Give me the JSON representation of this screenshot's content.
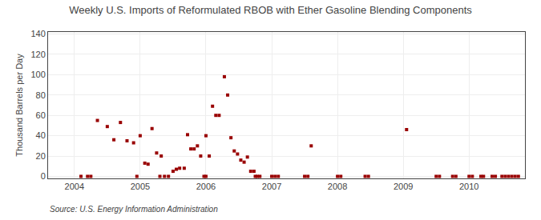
{
  "chart_data": {
    "type": "scatter",
    "title": "Weekly U.S. Imports of Reformulated RBOB with Ether Gasoline Blending Components",
    "y_label": "Thousand Barrels per Day",
    "annotations": [
      "Source: U.S. Energy Information Administration"
    ],
    "x": [
      2004.35,
      2004.5,
      2004.6,
      2004.7,
      2004.8,
      2004.9,
      2005.0,
      2005.07,
      2005.12,
      2005.18,
      2005.25,
      2005.32,
      2005.5,
      2005.55,
      2005.6,
      2005.67,
      2005.72,
      2005.77,
      2005.82,
      2005.87,
      2005.92,
      2006.0,
      2006.05,
      2006.1,
      2006.15,
      2006.2,
      2006.28,
      2006.33,
      2006.38,
      2006.43,
      2006.48,
      2006.53,
      2006.58,
      2006.63,
      2006.68,
      2006.73,
      2007.6,
      2009.05,
      2004.1,
      2004.2,
      2004.25,
      2004.95,
      2005.3,
      2005.37,
      2005.43,
      2005.97,
      2006.0,
      2006.75,
      2006.78,
      2006.82,
      2007.0,
      2007.05,
      2007.1,
      2007.5,
      2007.55,
      2008.0,
      2008.05,
      2008.42,
      2008.47,
      2009.5,
      2009.55,
      2009.75,
      2009.8,
      2010.0,
      2010.05,
      2010.18,
      2010.22,
      2010.35,
      2010.4,
      2010.5,
      2010.55,
      2010.6,
      2010.65,
      2010.7,
      2010.75
    ],
    "values": [
      55,
      49,
      36,
      53,
      35,
      33,
      40,
      13,
      12,
      47,
      23,
      20,
      5,
      7,
      8,
      8,
      41,
      27,
      27,
      30,
      20,
      40,
      20,
      69,
      60,
      60,
      98,
      80,
      38,
      25,
      22,
      16,
      14,
      19,
      5,
      5,
      30,
      46,
      0,
      0,
      0,
      0,
      0,
      0,
      0,
      0,
      0,
      0,
      0,
      0,
      0,
      0,
      0,
      0,
      0,
      0,
      0,
      0,
      0,
      0,
      0,
      0,
      0,
      0,
      0,
      0,
      0,
      0,
      0,
      0,
      0,
      0,
      0,
      0,
      0
    ],
    "color": "#990000",
    "marker": "square",
    "xlim": [
      2003.6,
      2010.85
    ],
    "ylim": [
      -2,
      142
    ],
    "xticks": [
      2004,
      2005,
      2006,
      2007,
      2008,
      2009,
      2010
    ],
    "yticks": [
      0,
      20,
      40,
      60,
      80,
      100,
      120,
      140
    ],
    "grid": true
  }
}
